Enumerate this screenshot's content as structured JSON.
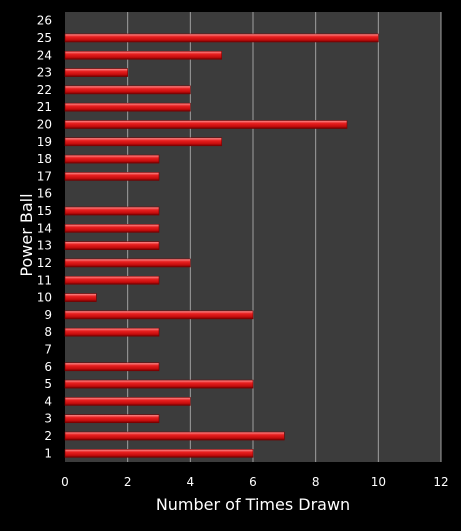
{
  "chart_data": {
    "type": "bar",
    "orientation": "horizontal",
    "title": "",
    "xlabel": "Number of Times Drawn",
    "ylabel": "Power Ball",
    "categories": [
      "1",
      "2",
      "3",
      "4",
      "5",
      "6",
      "7",
      "8",
      "9",
      "10",
      "11",
      "12",
      "13",
      "14",
      "15",
      "16",
      "17",
      "18",
      "19",
      "20",
      "21",
      "22",
      "23",
      "24",
      "25",
      "26"
    ],
    "values": [
      6,
      7,
      3,
      4,
      6,
      3,
      0,
      3,
      6,
      1,
      3,
      4,
      3,
      3,
      3,
      0,
      3,
      3,
      5,
      9,
      4,
      4,
      2,
      5,
      10,
      0
    ],
    "xlim": [
      0,
      12
    ],
    "xticks": [
      0,
      2,
      4,
      6,
      8,
      10,
      12
    ],
    "grid": "vertical",
    "legend": "none",
    "colors": {
      "page_background": "#000000",
      "plot_background": "#3c3c3c",
      "gridline": "#a0a0a0",
      "bar": "#e01818",
      "bar_highlight": "#ff8a8a",
      "bar_shadow": "#7a0000",
      "text": "#ffffff"
    }
  }
}
